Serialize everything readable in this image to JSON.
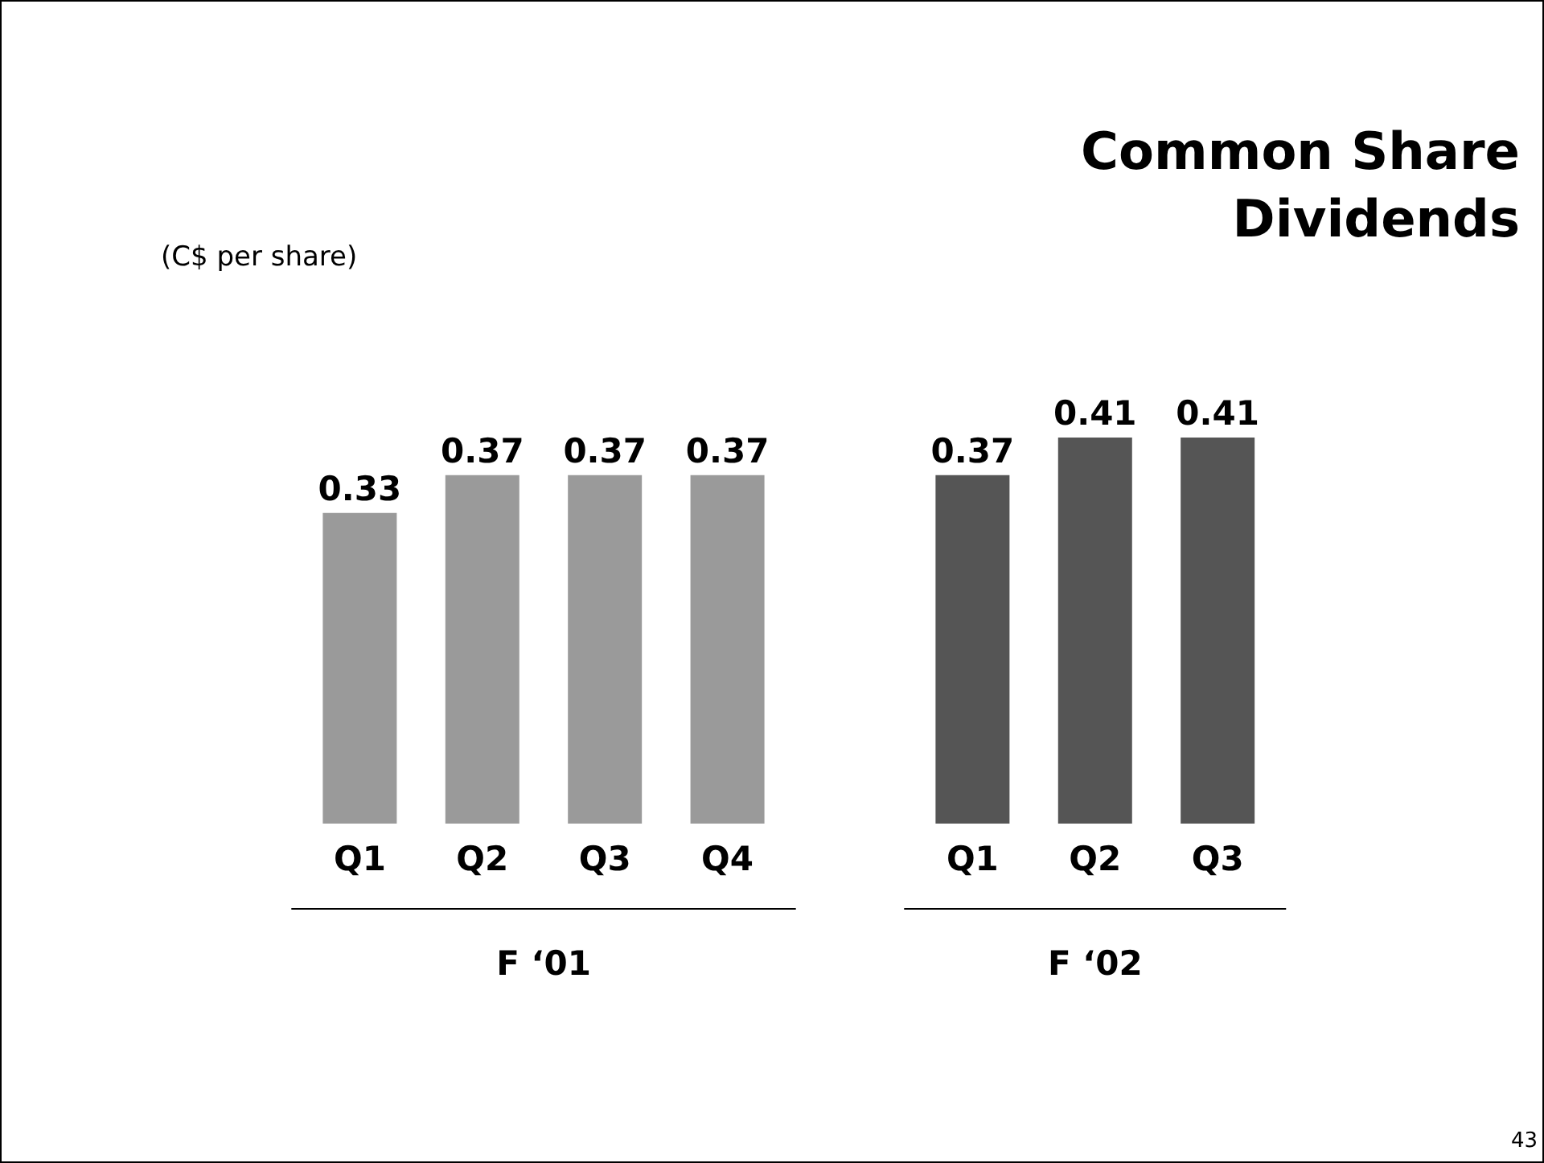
{
  "chart_data": {
    "type": "bar",
    "title": "Common Share Dividends",
    "subtitle": "(C$ per share)",
    "categories": [
      "Q1",
      "Q2",
      "Q3",
      "Q4",
      "Q1",
      "Q2",
      "Q3"
    ],
    "values": [
      0.33,
      0.37,
      0.37,
      0.37,
      0.37,
      0.41,
      0.41
    ],
    "colors": [
      "#9a9a9a",
      "#9a9a9a",
      "#9a9a9a",
      "#9a9a9a",
      "#555555",
      "#555555",
      "#555555"
    ],
    "data_labels": true,
    "annotations": [
      "F ‘01",
      "F ‘02",
      "43"
    ]
  }
}
